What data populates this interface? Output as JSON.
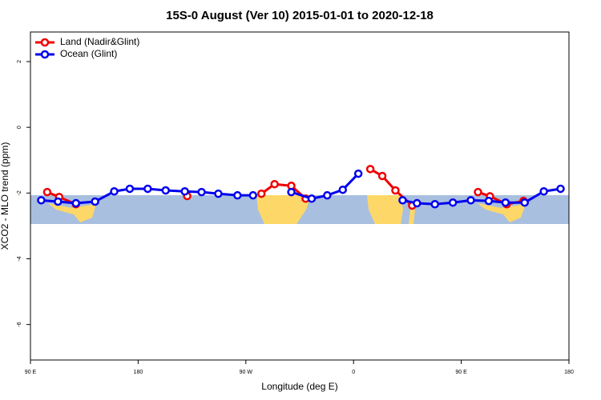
{
  "chart_data": {
    "type": "line",
    "title": "15S-0 August (Ver 10)   2015-01-01 to 2020-12-18",
    "x_label": "Longitude (deg E)",
    "y_label": "XCO2 - MLO trend (ppm)",
    "xlim": [
      90,
      540
    ],
    "xticks": [
      {
        "value": 90,
        "label": "90 E"
      },
      {
        "value": 180,
        "label": "180"
      },
      {
        "value": 270,
        "label": "90 W"
      },
      {
        "value": 360,
        "label": "0"
      },
      {
        "value": 450,
        "label": "90 E"
      },
      {
        "value": 540,
        "label": "180"
      }
    ],
    "ylim": [
      -7.08,
      2.9
    ],
    "yticks": [
      2,
      0,
      -2,
      -4,
      -6
    ],
    "legend": "top-left",
    "series": [
      {
        "name": "Land (Nadir&Glint)",
        "color": "#ee0000",
        "x": [
          104,
          114,
          128,
          null,
          221,
          null,
          283,
          294,
          308,
          320,
          null,
          374,
          384,
          395,
          409,
          null,
          464,
          474,
          488,
          502
        ],
        "values": [
          -1.97,
          -2.12,
          -2.34,
          null,
          -2.09,
          null,
          -2.02,
          -1.73,
          -1.78,
          -2.17,
          null,
          -1.27,
          -1.48,
          -1.92,
          -2.38,
          null,
          -1.97,
          -2.1,
          -2.34,
          -2.24
        ]
      },
      {
        "name": "Ocean (Glint)",
        "color": "#0000ee",
        "x": [
          99,
          113,
          128,
          144,
          160,
          173,
          188,
          203,
          219,
          233,
          247,
          263,
          276,
          null,
          308,
          325,
          338,
          351,
          364,
          null,
          401,
          413,
          428,
          443,
          458,
          473,
          487,
          503,
          519,
          533
        ],
        "values": [
          -2.22,
          -2.26,
          -2.31,
          -2.26,
          -1.95,
          -1.87,
          -1.87,
          -1.92,
          -1.95,
          -1.97,
          -2.02,
          -2.07,
          -2.07,
          null,
          -1.97,
          -2.17,
          -2.07,
          -1.9,
          -1.41,
          null,
          -2.22,
          -2.31,
          -2.34,
          -2.29,
          -2.22,
          -2.24,
          -2.29,
          -2.29,
          -1.95,
          -1.87
        ]
      }
    ]
  }
}
